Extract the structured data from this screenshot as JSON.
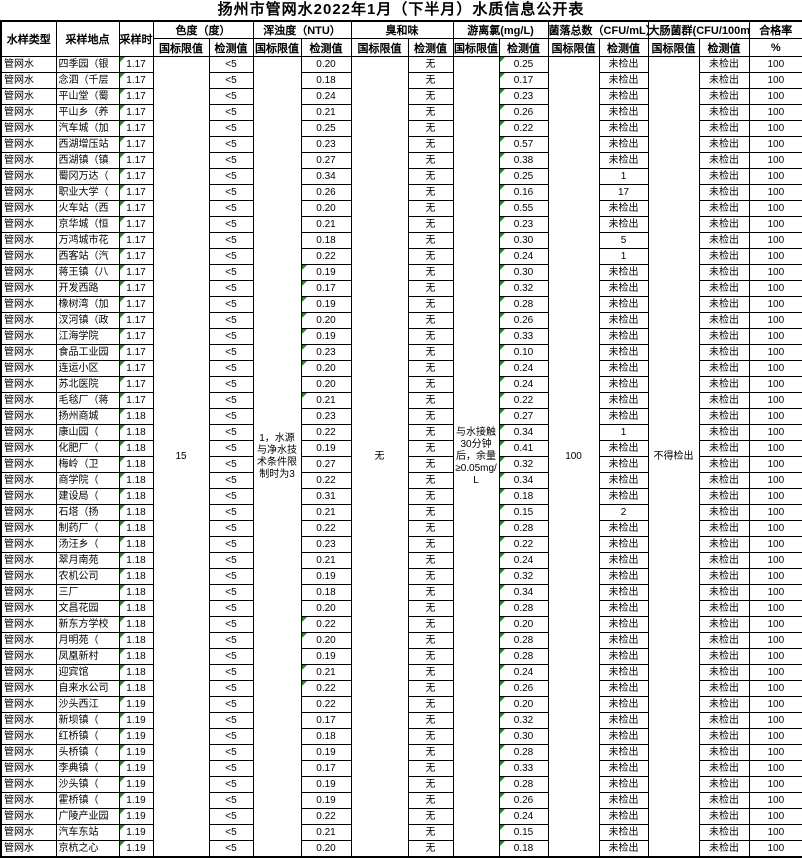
{
  "title": "扬州市管网水2022年1月（下半月）水质信息公开表",
  "header": {
    "sample_type": "水样类型",
    "location": "采样地点",
    "time": "采样时间",
    "groups": {
      "color": "色度（度）",
      "turbidity": "浑浊度（NTU）",
      "odor": "臭和味",
      "chlorine": "游离氯(mg/L)",
      "colony": "菌落总数（CFU/mL）",
      "coliform": "大肠菌群(CFU/100m"
    },
    "limit_label": "国标限值",
    "value_label": "检测值",
    "rate_label": "合格率",
    "rate_unit": "%"
  },
  "limits": {
    "color": "15",
    "turbidity": "1，水源与净水技术条件限制时为3",
    "odor": "无",
    "chlorine": "与水接触30分钟后，余量≥0.05mg/L",
    "colony": "100",
    "coliform": "不得检出"
  },
  "table": {
    "constants": {
      "sample_type": "管网水",
      "color_value": "<5",
      "odor_value": "无",
      "coliform_value": "未检出",
      "pass_rate": "100"
    },
    "rows": [
      {
        "loc": "四季园（银",
        "time": "1.17",
        "turb": "0.20",
        "cl": "0.25",
        "colony": "未检出"
      },
      {
        "loc": "念泗（千层",
        "time": "1.17",
        "turb": "0.18",
        "cl": "0.17",
        "colony": "未检出"
      },
      {
        "loc": "平山堂（蜀",
        "time": "1.17",
        "turb": "0.24",
        "cl": "0.23",
        "colony": "未检出"
      },
      {
        "loc": "平山乡（养",
        "time": "1.17",
        "turb": "0.21",
        "cl": "0.26",
        "colony": "未检出"
      },
      {
        "loc": "汽车城（加",
        "time": "1.17",
        "turb": "0.25",
        "cl": "0.22",
        "colony": "未检出"
      },
      {
        "loc": "西湖增压站",
        "time": "1.17",
        "turb": "0.23",
        "cl": "0.57",
        "colony": "未检出"
      },
      {
        "loc": "西湖镇（镇",
        "time": "1.17",
        "turb": "0.27",
        "cl": "0.38",
        "colony": "未检出"
      },
      {
        "loc": "蜀冈万达（",
        "time": "1.17",
        "turb": "0.34",
        "cl": "0.25",
        "colony": "1"
      },
      {
        "loc": "职业大学（",
        "time": "1.17",
        "turb": "0.26",
        "cl": "0.16",
        "colony": "17"
      },
      {
        "loc": "火车站（西",
        "time": "1.17",
        "turb": "0.20",
        "cl": "0.55",
        "colony": "未检出"
      },
      {
        "loc": "京华城（恒",
        "time": "1.17",
        "turb": "0.21",
        "cl": "0.23",
        "colony": "未检出"
      },
      {
        "loc": "万鸿城市花",
        "time": "1.17",
        "turb": "0.18",
        "cl": "0.30",
        "colony": "5"
      },
      {
        "loc": "西客站（汽",
        "time": "1.17",
        "turb": "0.22",
        "cl": "0.24",
        "colony": "1"
      },
      {
        "loc": "蒋王镇（八",
        "time": "1.17",
        "turb": "0.19",
        "cl": "0.30",
        "colony": "未检出"
      },
      {
        "loc": "开发西路",
        "time": "1.17",
        "turb": "0.17",
        "cl": "0.32",
        "colony": "未检出"
      },
      {
        "loc": "橡树湾（加",
        "time": "1.17",
        "turb": "0.19",
        "cl": "0.28",
        "colony": "未检出"
      },
      {
        "loc": "汊河镇（政",
        "time": "1.17",
        "turb": "0.20",
        "cl": "0.26",
        "colony": "未检出"
      },
      {
        "loc": "江海学院",
        "time": "1.17",
        "turb": "0.19",
        "cl": "0.33",
        "colony": "未检出"
      },
      {
        "loc": "食品工业园",
        "time": "1.17",
        "turb": "0.23",
        "cl": "0.10",
        "colony": "未检出"
      },
      {
        "loc": "连运小区",
        "time": "1.17",
        "turb": "0.20",
        "cl": "0.24",
        "colony": "未检出"
      },
      {
        "loc": "苏北医院",
        "time": "1.17",
        "turb": "0.20",
        "cl": "0.24",
        "colony": "未检出"
      },
      {
        "loc": "毛毯厂（蒋",
        "time": "1.17",
        "turb": "0.21",
        "cl": "0.22",
        "colony": "未检出"
      },
      {
        "loc": "扬州商城",
        "time": "1.18",
        "turb": "0.23",
        "cl": "0.27",
        "colony": "未检出"
      },
      {
        "loc": "康山园（",
        "time": "1.18",
        "turb": "0.22",
        "cl": "0.34",
        "colony": "1"
      },
      {
        "loc": "化肥厂（",
        "time": "1.18",
        "turb": "0.19",
        "cl": "0.41",
        "colony": "未检出"
      },
      {
        "loc": "梅岭（卫",
        "time": "1.18",
        "turb": "0.27",
        "cl": "0.32",
        "colony": "未检出"
      },
      {
        "loc": "商学院（",
        "time": "1.18",
        "turb": "0.22",
        "cl": "0.34",
        "colony": "未检出"
      },
      {
        "loc": "建设局（",
        "time": "1.18",
        "turb": "0.31",
        "cl": "0.18",
        "colony": "未检出"
      },
      {
        "loc": "石塔（扬",
        "time": "1.18",
        "turb": "0.21",
        "cl": "0.15",
        "colony": "2"
      },
      {
        "loc": "制药厂（",
        "time": "1.18",
        "turb": "0.22",
        "cl": "0.28",
        "colony": "未检出"
      },
      {
        "loc": "汤汪乡（",
        "time": "1.18",
        "turb": "0.23",
        "cl": "0.22",
        "colony": "未检出"
      },
      {
        "loc": "翠月南苑",
        "time": "1.18",
        "turb": "0.21",
        "cl": "0.24",
        "colony": "未检出"
      },
      {
        "loc": "农机公司",
        "time": "1.18",
        "turb": "0.19",
        "cl": "0.32",
        "colony": "未检出"
      },
      {
        "loc": "三厂",
        "time": "1.18",
        "turb": "0.18",
        "cl": "0.34",
        "colony": "未检出"
      },
      {
        "loc": "文昌花园",
        "time": "1.18",
        "turb": "0.20",
        "cl": "0.28",
        "colony": "未检出"
      },
      {
        "loc": "新东方学校",
        "time": "1.18",
        "turb": "0.22",
        "cl": "0.20",
        "colony": "未检出"
      },
      {
        "loc": "月明苑（",
        "time": "1.18",
        "turb": "0.20",
        "cl": "0.28",
        "colony": "未检出"
      },
      {
        "loc": "凤凰新村",
        "time": "1.18",
        "turb": "0.19",
        "cl": "0.28",
        "colony": "未检出"
      },
      {
        "loc": "迎宾馆",
        "time": "1.18",
        "turb": "0.21",
        "cl": "0.24",
        "colony": "未检出"
      },
      {
        "loc": "自来水公司",
        "time": "1.18",
        "turb": "0.22",
        "cl": "0.26",
        "colony": "未检出"
      },
      {
        "loc": "沙头西江",
        "time": "1.19",
        "turb": "0.22",
        "cl": "0.20",
        "colony": "未检出"
      },
      {
        "loc": "新坝镇（",
        "time": "1.19",
        "turb": "0.17",
        "cl": "0.32",
        "colony": "未检出"
      },
      {
        "loc": "红桥镇（",
        "time": "1.19",
        "turb": "0.18",
        "cl": "0.30",
        "colony": "未检出"
      },
      {
        "loc": "头桥镇（",
        "time": "1.19",
        "turb": "0.19",
        "cl": "0.28",
        "colony": "未检出"
      },
      {
        "loc": "李典镇（",
        "time": "1.19",
        "turb": "0.17",
        "cl": "0.33",
        "colony": "未检出"
      },
      {
        "loc": "沙头镇（",
        "time": "1.19",
        "turb": "0.19",
        "cl": "0.28",
        "colony": "未检出"
      },
      {
        "loc": "霍桥镇（",
        "time": "1.19",
        "turb": "0.19",
        "cl": "0.26",
        "colony": "未检出"
      },
      {
        "loc": "广陵产业园",
        "time": "1.19",
        "turb": "0.22",
        "cl": "0.24",
        "colony": "未检出"
      },
      {
        "loc": "汽车东站",
        "time": "1.19",
        "turb": "0.21",
        "cl": "0.15",
        "colony": "未检出"
      },
      {
        "loc": "京杭之心",
        "time": "1.19",
        "turb": "0.20",
        "cl": "0.18",
        "colony": "未检出"
      }
    ],
    "green_marks": {
      "time": "all",
      "chlorine": "all",
      "turbidity_rows": [
        14,
        15,
        16,
        17,
        18,
        19,
        20,
        22,
        36,
        37,
        39,
        40
      ]
    }
  }
}
